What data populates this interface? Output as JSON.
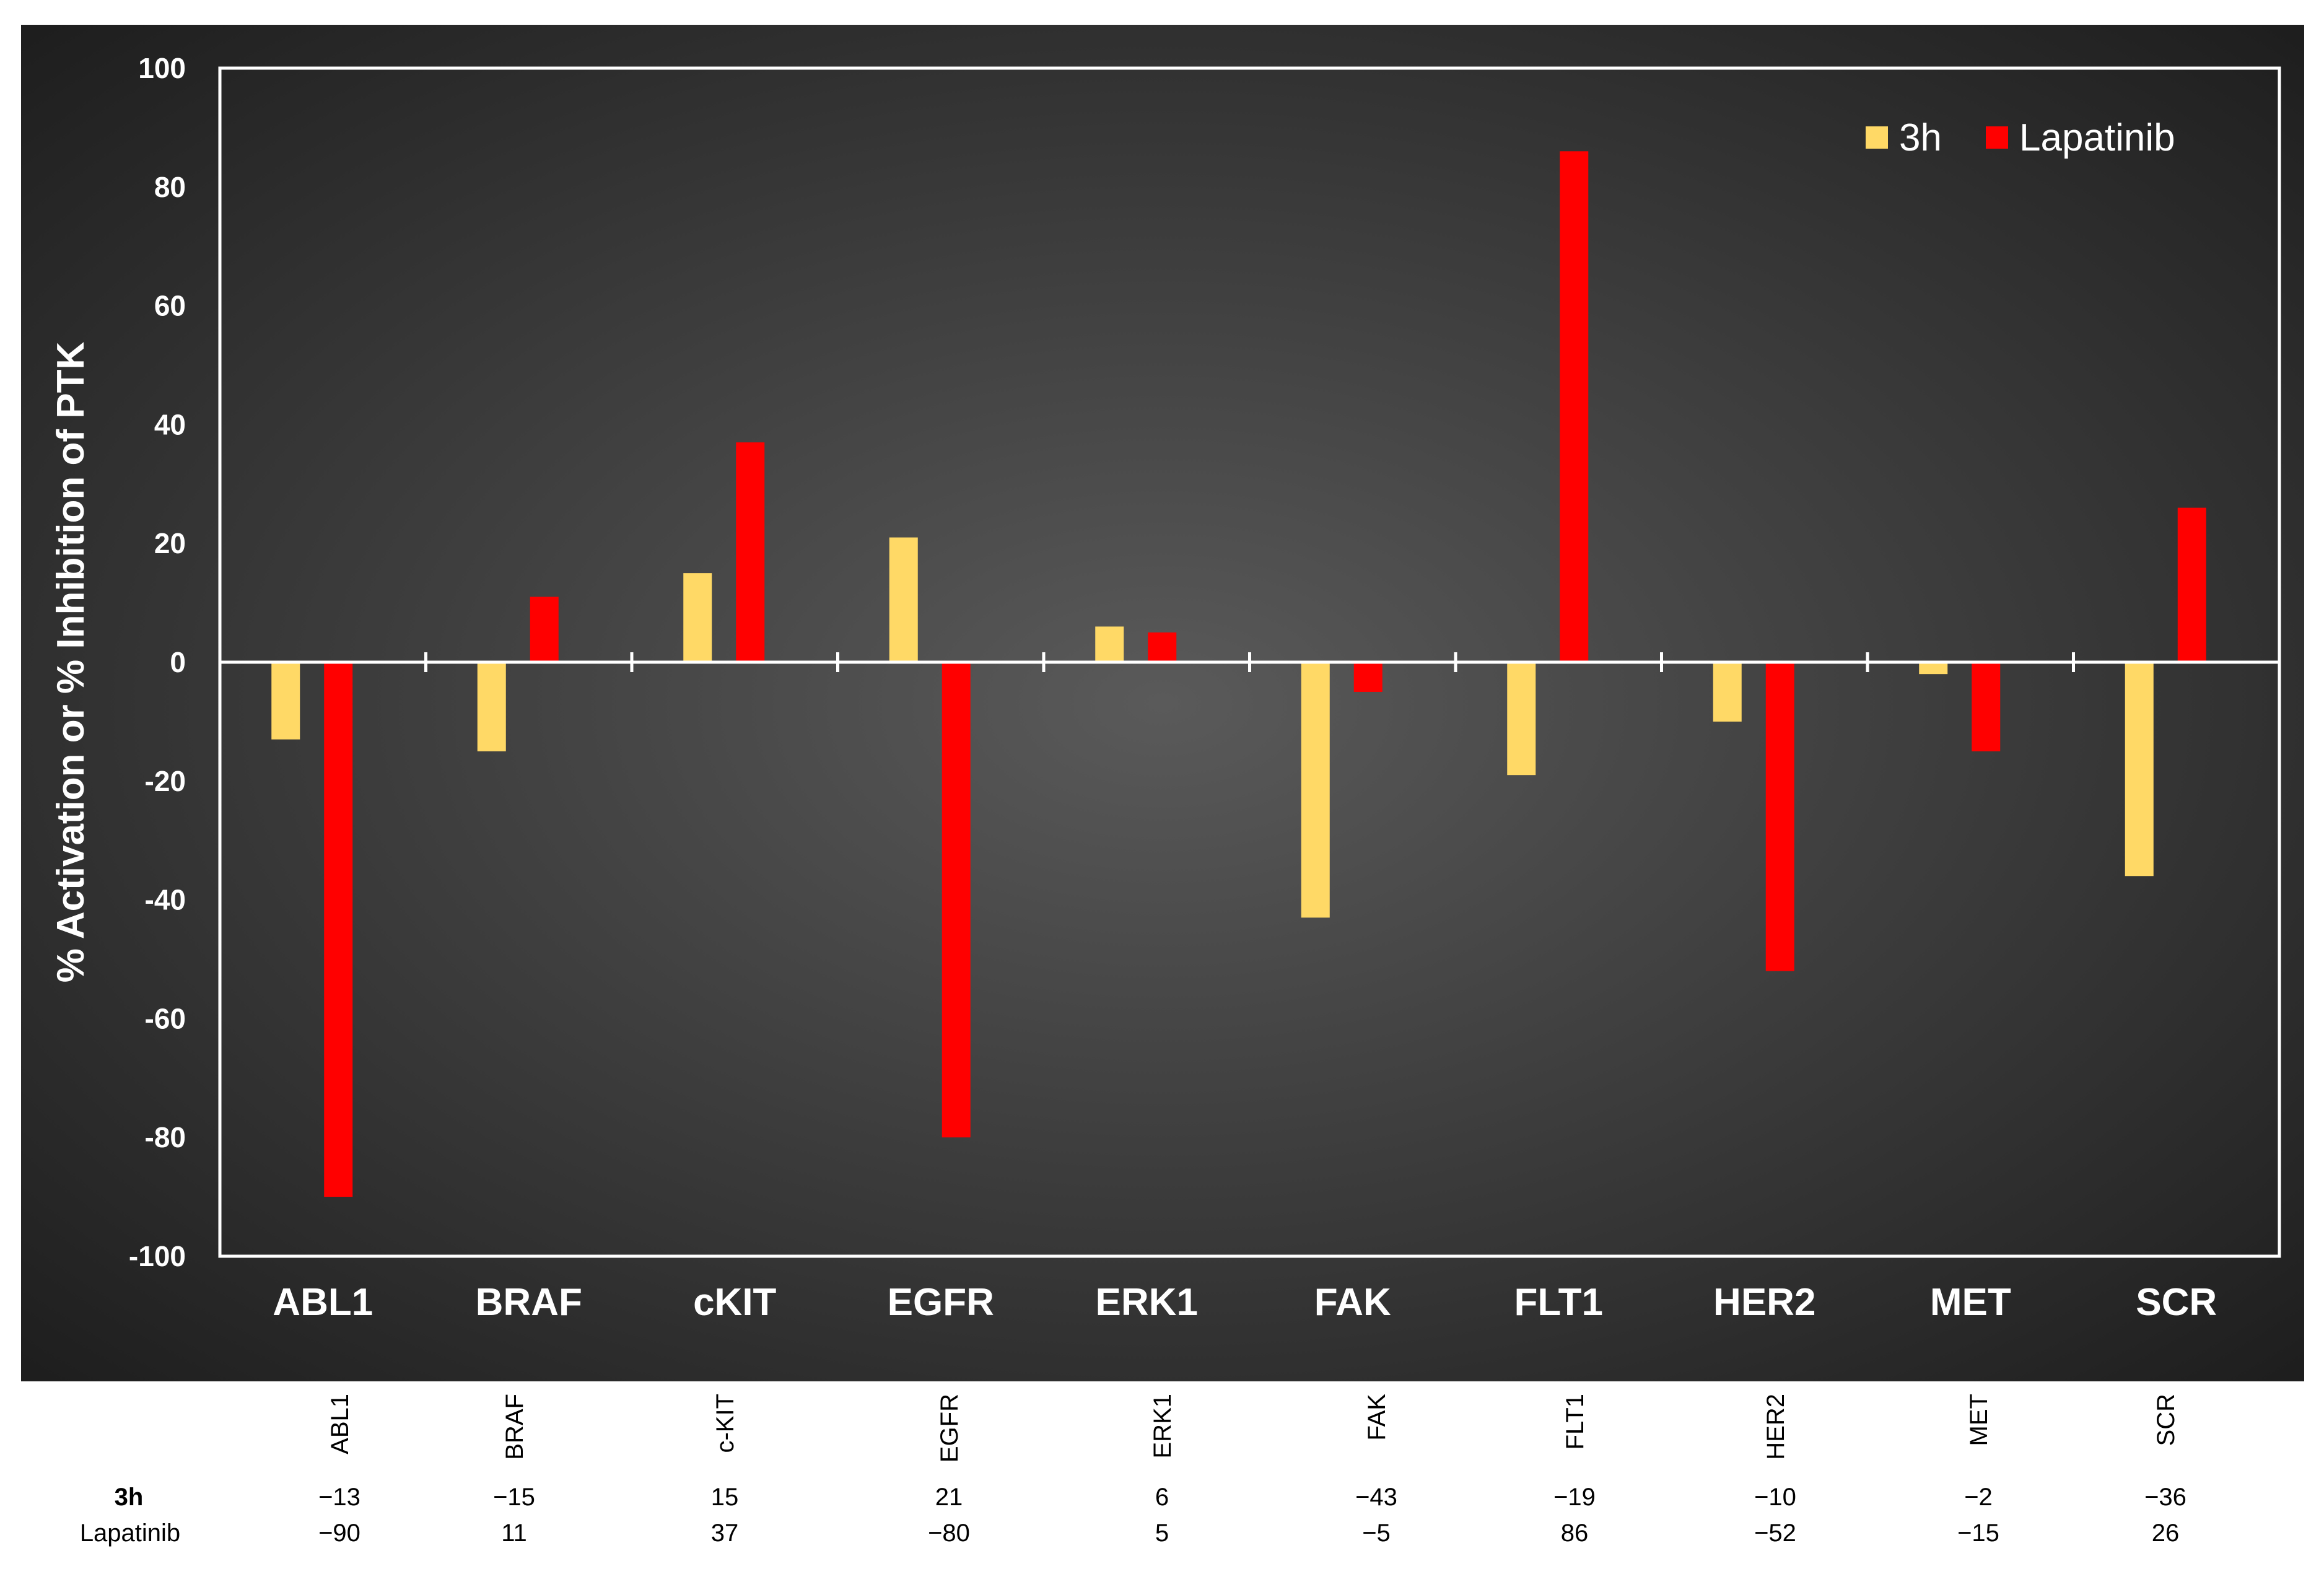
{
  "colors": {
    "series_3h": "#FFD966",
    "series_lapatinib": "#FF0000",
    "background_center": "#5a5a5a",
    "background_edge": "#1e1e1e",
    "axis": "#ffffff"
  },
  "chart_data": {
    "type": "bar",
    "title": "",
    "xlabel": "",
    "ylabel": "% Activation or % Inhibition of PTK",
    "ylim": [
      -100,
      100
    ],
    "yticks": [
      100,
      80,
      60,
      40,
      20,
      0,
      -20,
      -40,
      -60,
      -80,
      -100
    ],
    "ytick_labels": [
      "100",
      "80",
      "60",
      "40",
      "20",
      "0",
      "-20",
      "-40",
      "-60",
      "-80",
      "-100"
    ],
    "grid": false,
    "legend_position": "top-right",
    "categories": [
      "ABL1",
      "BRAF",
      "cKIT",
      "EGFR",
      "ERK1",
      "FAK",
      "FLT1",
      "HER2",
      "MET",
      "SCR"
    ],
    "series": [
      {
        "name": "3h",
        "values": [
          -13,
          -15,
          15,
          21,
          6,
          -43,
          -19,
          -10,
          -2,
          -36
        ]
      },
      {
        "name": "Lapatinib",
        "values": [
          -90,
          11,
          37,
          -80,
          5,
          -5,
          86,
          -52,
          -15,
          26
        ]
      }
    ]
  },
  "data_table": {
    "columns": [
      "ABL1",
      "BRAF",
      "c-KIT",
      "EGFR",
      "ERK1",
      "FAK",
      "FLT1",
      "HER2",
      "MET",
      "SCR"
    ],
    "rows": [
      {
        "label": "3h",
        "values": [
          "−13",
          "−15",
          "15",
          "21",
          "6",
          "−43",
          "−19",
          "−10",
          "−2",
          "−36"
        ]
      },
      {
        "label": "Lapatinib",
        "values": [
          "−90",
          "11",
          "37",
          "−80",
          "5",
          "−5",
          "86",
          "−52",
          "−15",
          "26"
        ]
      }
    ]
  }
}
